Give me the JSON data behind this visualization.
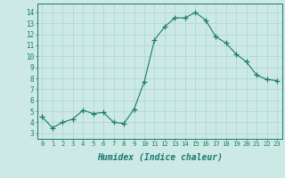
{
  "x": [
    0,
    1,
    2,
    3,
    4,
    5,
    6,
    7,
    8,
    9,
    10,
    11,
    12,
    13,
    14,
    15,
    16,
    17,
    18,
    19,
    20,
    21,
    22,
    23
  ],
  "y": [
    4.5,
    3.5,
    4.0,
    4.3,
    5.1,
    4.8,
    4.9,
    4.0,
    3.9,
    5.2,
    7.7,
    11.5,
    12.7,
    13.5,
    13.5,
    14.0,
    13.3,
    11.8,
    11.2,
    10.2,
    9.5,
    8.3,
    7.9,
    7.8
  ],
  "line_color": "#1a7a6e",
  "marker": "+",
  "marker_size": 4,
  "bg_color": "#cce9e5",
  "grid_color": "#b0d8d3",
  "xlabel": "Humidex (Indice chaleur)",
  "ylabel_ticks": [
    3,
    4,
    5,
    6,
    7,
    8,
    9,
    10,
    11,
    12,
    13,
    14
  ],
  "ylim": [
    2.5,
    14.8
  ],
  "xlim": [
    -0.5,
    23.5
  ]
}
